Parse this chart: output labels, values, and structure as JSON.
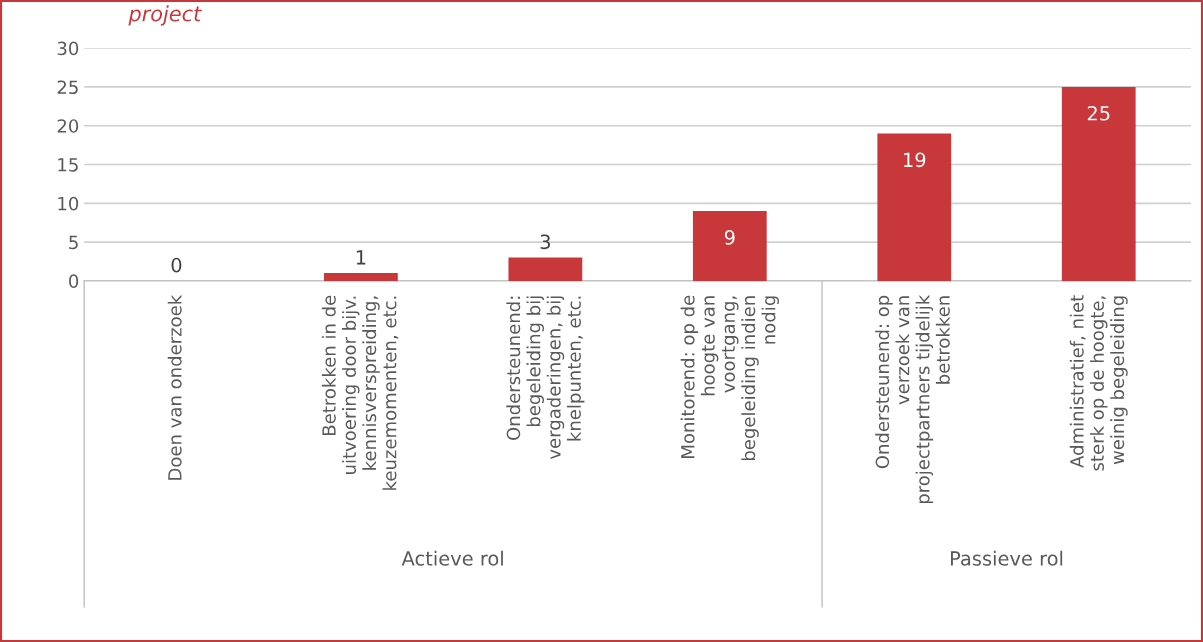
{
  "chart_data": {
    "type": "bar",
    "title": "project",
    "categories": [
      "Doen van onderzoek",
      "Betrokken in de\nuitvoering door bijv.\nkennisverspreiding,\nkeuzemomenten, etc.",
      "Ondersteunend:\nbegeleiding bij\nvergaderingen, bij\nknelpunten, etc.",
      "Monitorend: op de\nhoogte van\nvoortgang,\nbegeleiding indien\nnodig",
      "Ondersteunend: op\nverzoek van\nprojectpartners tijdelijk\nbetrokken",
      "Administratief, niet\nsterk op de hoogte,\nweinig begeleiding"
    ],
    "values": [
      0,
      1,
      3,
      9,
      19,
      25
    ],
    "color": "#c8383a",
    "ylim": [
      0,
      30
    ],
    "yticks": [
      0,
      5,
      10,
      15,
      20,
      25,
      30
    ],
    "grid": "y",
    "data_labels": true,
    "annotations": [
      "Actieve rol",
      "Passieve rol"
    ]
  }
}
